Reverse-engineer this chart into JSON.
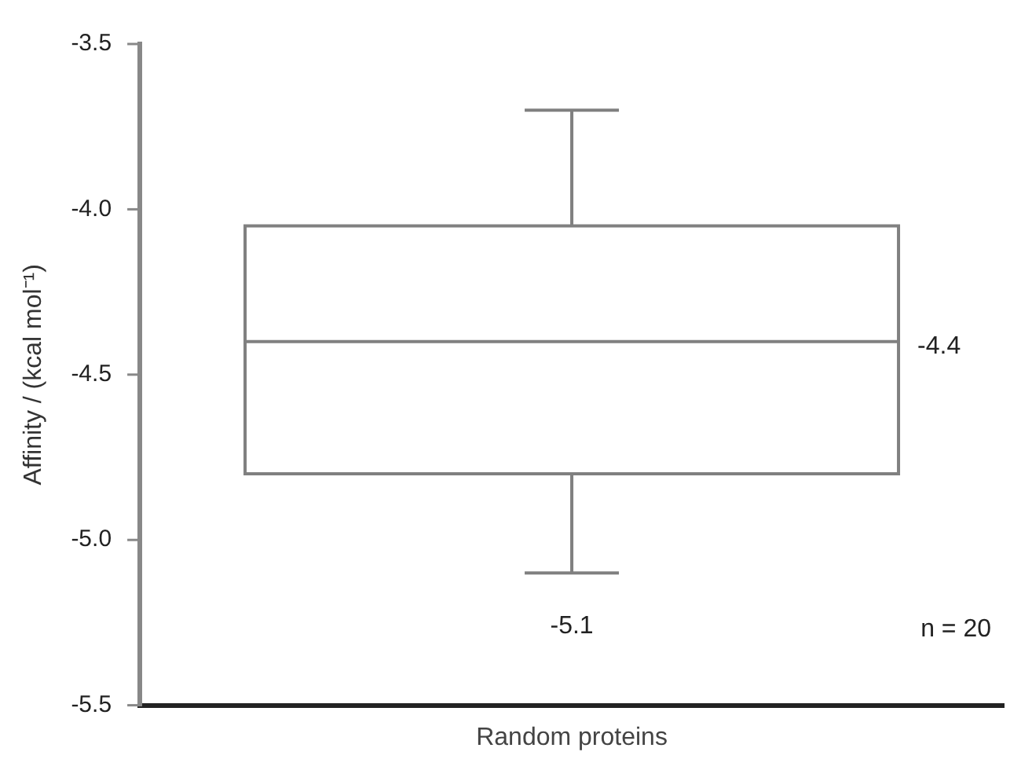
{
  "chart_data": {
    "type": "box",
    "ylabel": "Affinity / (kcal mol⁻¹)",
    "categories": [
      "Random proteins"
    ],
    "boxes": [
      {
        "low": -5.1,
        "q1": -4.8,
        "median": -4.4,
        "q3": -4.05,
        "high": -3.7
      }
    ],
    "color": "#808080",
    "ylim": [
      -5.5,
      -3.5
    ],
    "yticks": [
      {
        "value": -5.5,
        "label": "-5.5"
      },
      {
        "value": -5.0,
        "label": "-5.0"
      },
      -4.5,
      {
        "value": -4.0,
        "label": "-4.0"
      },
      {
        "value": -3.5,
        "label": "-3.5"
      }
    ],
    "grid": false,
    "annotations": [
      "-4.4",
      "-5.1",
      "n = 20"
    ]
  }
}
